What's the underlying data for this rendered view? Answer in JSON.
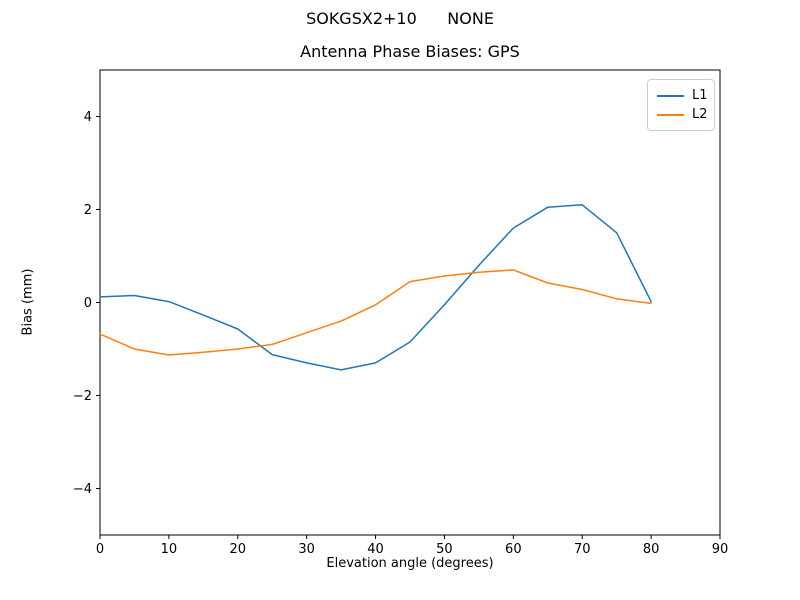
{
  "chart_data": {
    "type": "line",
    "suptitle": "SOKGSX2+10      NONE",
    "title": "Antenna Phase Biases: GPS",
    "xlabel": "Elevation angle (degrees)",
    "ylabel": "Bias (mm)",
    "xlim": [
      0,
      90
    ],
    "ylim": [
      -5,
      5
    ],
    "xticks": [
      0,
      10,
      20,
      30,
      40,
      50,
      60,
      70,
      80,
      90
    ],
    "yticks": [
      -4,
      -2,
      0,
      2,
      4
    ],
    "grid": false,
    "legend_position": "upper right",
    "x": [
      0,
      5,
      10,
      15,
      20,
      25,
      30,
      35,
      40,
      45,
      50,
      55,
      60,
      65,
      70,
      75,
      80
    ],
    "series": [
      {
        "name": "L1",
        "color": "#1f77b4",
        "values": [
          0.12,
          0.15,
          0.02,
          -0.27,
          -0.57,
          -1.12,
          -1.3,
          -1.45,
          -1.3,
          -0.85,
          -0.05,
          0.8,
          1.6,
          2.05,
          2.1,
          1.5,
          0.02
        ]
      },
      {
        "name": "L2",
        "color": "#ff7f0e",
        "values": [
          -0.68,
          -1.0,
          -1.13,
          -1.07,
          -1.0,
          -0.9,
          -0.65,
          -0.4,
          -0.05,
          0.45,
          0.57,
          0.65,
          0.7,
          0.42,
          0.28,
          0.08,
          -0.02
        ]
      }
    ]
  }
}
